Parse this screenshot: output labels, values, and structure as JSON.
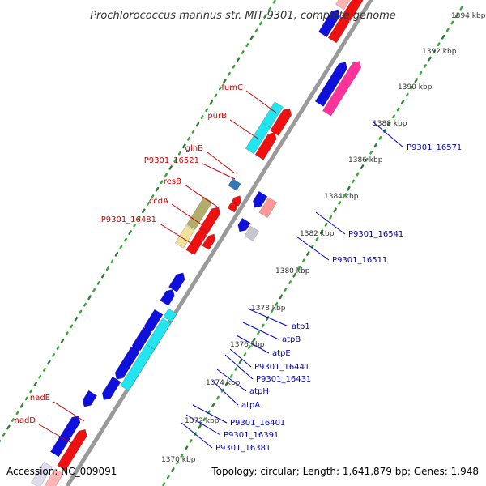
{
  "title": "Prochlorococcus marinus str. MIT 9301, complete genome",
  "accession": "Accession: NC_009091",
  "summary": "Topology: circular; Length: 1,641,879 bp; Genes: 1,948",
  "colors": {
    "backbone": "#8c8c8c",
    "tick": "#2e7d32",
    "tick_dot": "#33aa33",
    "forward_label": "#cc0000",
    "reverse_label": "#0000cc",
    "leader": "#cc0000",
    "leader_rev": "#0000cc"
  },
  "scale_labels": [
    "1394 kbp",
    "1392 kbp",
    "1390 kbp",
    "1388 kbp",
    "1386 kbp",
    "1384 kbp",
    "1382 kbp",
    "1380 kbp",
    "1378 kbp",
    "1376 kbp",
    "1374 kbp",
    "1372 kbp",
    "1370 kbp"
  ],
  "forward_genes": [
    "fumC",
    "purB",
    "glnB",
    "P9301_16521",
    "resB",
    "ccdA",
    "P9301_16481",
    "nadE",
    "nadD"
  ],
  "reverse_genes": [
    "P9301_16571",
    "P9301_16541",
    "P9301_16511",
    "atp1",
    "atpB",
    "atpE",
    "P9301_16441",
    "P9301_16431",
    "atpH",
    "atpA",
    "P9301_16401",
    "P9301_16391",
    "P9301_16381"
  ]
}
